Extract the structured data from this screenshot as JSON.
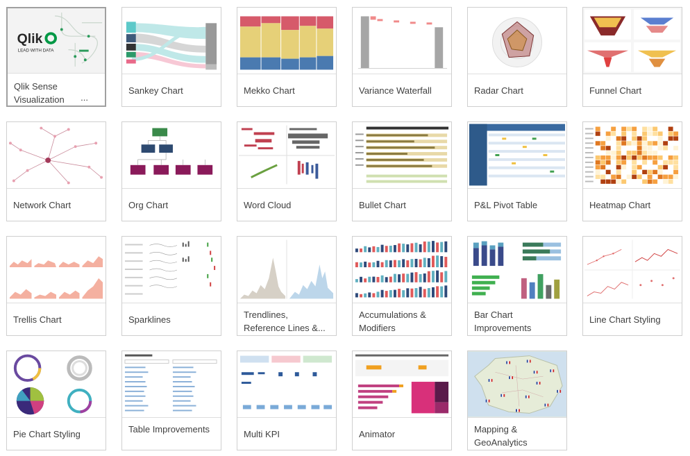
{
  "thumbnail": {
    "qlik_brand": "Qlik",
    "qlik_tagline": "LEAD WITH DATA"
  },
  "cards": [
    {
      "id": "qlik-sense-visualization",
      "title": "Qlik Sense Visualization",
      "ellipsis": "...",
      "selected": true
    },
    {
      "id": "sankey-chart",
      "title": "Sankey Chart"
    },
    {
      "id": "mekko-chart",
      "title": "Mekko Chart"
    },
    {
      "id": "variance-waterfall",
      "title": "Variance Waterfall"
    },
    {
      "id": "radar-chart",
      "title": "Radar Chart"
    },
    {
      "id": "funnel-chart",
      "title": "Funnel Chart"
    },
    {
      "id": "network-chart",
      "title": "Network Chart"
    },
    {
      "id": "org-chart",
      "title": "Org Chart"
    },
    {
      "id": "word-cloud",
      "title": "Word Cloud"
    },
    {
      "id": "bullet-chart",
      "title": "Bullet Chart"
    },
    {
      "id": "pl-pivot-table",
      "title": "P&L Pivot Table"
    },
    {
      "id": "heatmap-chart",
      "title": "Heatmap Chart"
    },
    {
      "id": "trellis-chart",
      "title": "Trellis Chart"
    },
    {
      "id": "sparklines",
      "title": "Sparklines"
    },
    {
      "id": "trendlines",
      "title": "Trendlines, Reference Lines &..."
    },
    {
      "id": "accumulations",
      "title": "Accumulations & Modifiers"
    },
    {
      "id": "bar-chart-improvements",
      "title": "Bar Chart Improvements"
    },
    {
      "id": "line-chart-styling",
      "title": "Line Chart Styling"
    },
    {
      "id": "pie-chart-styling",
      "title": "Pie Chart Styling"
    },
    {
      "id": "table-improvements",
      "title": "Table Improvements"
    },
    {
      "id": "multi-kpi",
      "title": "Multi KPI"
    },
    {
      "id": "animator",
      "title": "Animator"
    },
    {
      "id": "mapping-geoanalytics",
      "title": "Mapping & GeoAnalytics"
    }
  ]
}
